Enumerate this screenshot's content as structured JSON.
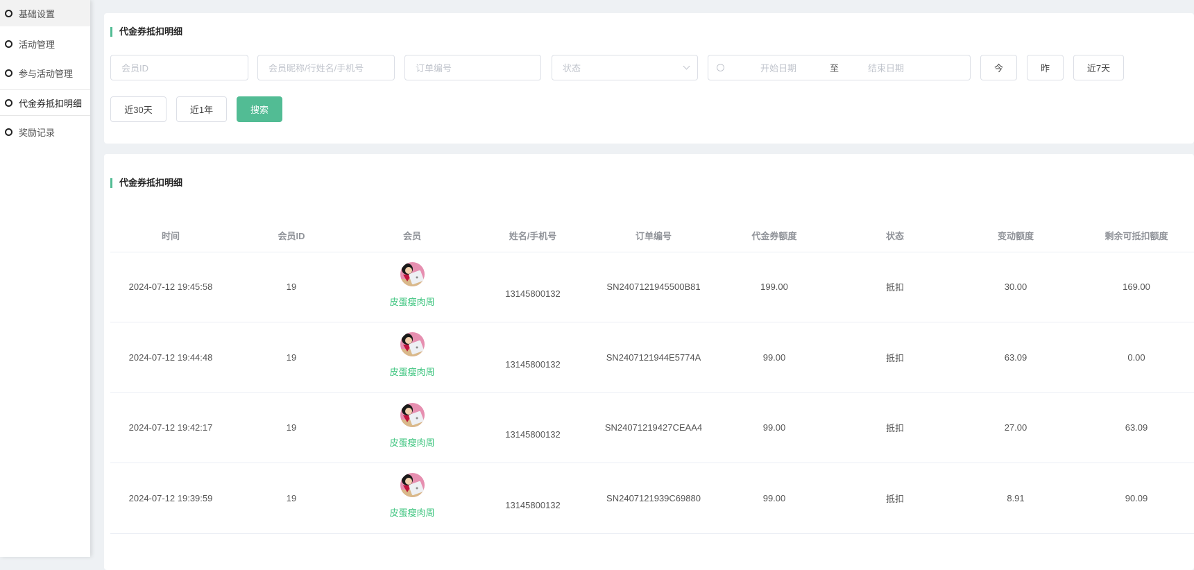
{
  "sidebar": {
    "items": [
      {
        "label": "基础设置"
      },
      {
        "label": "活动管理"
      },
      {
        "label": "参与活动管理"
      },
      {
        "label": "代金券抵扣明细"
      },
      {
        "label": "奖励记录"
      }
    ]
  },
  "filter": {
    "title": "代金券抵扣明细",
    "member_id_placeholder": "会员ID",
    "member_name_placeholder": "会员昵称/行姓名/手机号",
    "order_placeholder": "订单编号",
    "status_placeholder": "状态",
    "start_date_placeholder": "开始日期",
    "range_sep": "至",
    "end_date_placeholder": "结束日期",
    "today": "今",
    "yesterday": "昨",
    "last7": "近7天",
    "last30": "近30天",
    "last1y": "近1年",
    "search": "搜索"
  },
  "table": {
    "title": "代金券抵扣明细",
    "headers": [
      "时间",
      "会员ID",
      "会员",
      "姓名/手机号",
      "订单编号",
      "代金券额度",
      "状态",
      "变动额度",
      "剩余可抵扣额度"
    ],
    "rows": [
      {
        "time": "2024-07-12 19:45:58",
        "member_id": "19",
        "nickname": "皮蛋瘦肉周",
        "phone": "13145800132",
        "order": "SN2407121945500B81",
        "quota": "199.00",
        "status": "抵扣",
        "change": "30.00",
        "remaining": "169.00"
      },
      {
        "time": "2024-07-12 19:44:48",
        "member_id": "19",
        "nickname": "皮蛋瘦肉周",
        "phone": "13145800132",
        "order": "SN2407121944E5774A",
        "quota": "99.00",
        "status": "抵扣",
        "change": "63.09",
        "remaining": "0.00"
      },
      {
        "time": "2024-07-12 19:42:17",
        "member_id": "19",
        "nickname": "皮蛋瘦肉周",
        "phone": "13145800132",
        "order": "SN24071219427CEAA4",
        "quota": "99.00",
        "status": "抵扣",
        "change": "27.00",
        "remaining": "63.09"
      },
      {
        "time": "2024-07-12 19:39:59",
        "member_id": "19",
        "nickname": "皮蛋瘦肉周",
        "phone": "13145800132",
        "order": "SN2407121939C69880",
        "quota": "99.00",
        "status": "抵扣",
        "change": "8.91",
        "remaining": "90.09"
      }
    ]
  },
  "colors": {
    "accent": "#52bc94",
    "nickname": "#3cc47e"
  }
}
